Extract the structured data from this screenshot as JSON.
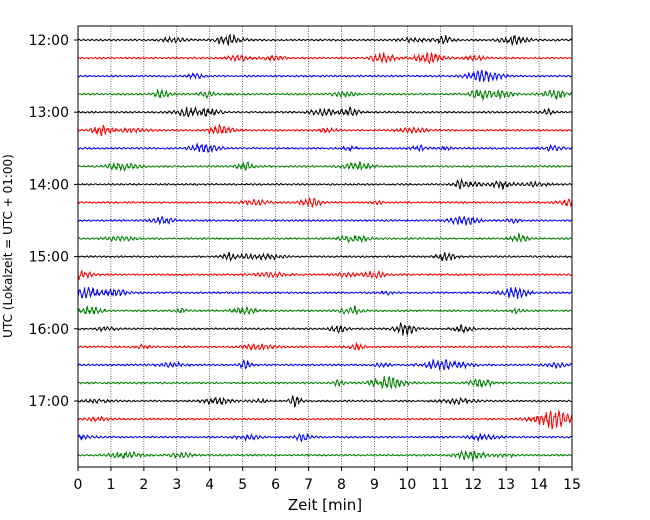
{
  "chart_data": {
    "type": "line",
    "title": "",
    "xlabel": "Zeit  [min]",
    "ylabel": "UTC (Lokalzeit = UTC + 01:00)",
    "xlim": [
      0,
      15
    ],
    "x_ticks": [
      "0",
      "1",
      "2",
      "3",
      "4",
      "5",
      "6",
      "7",
      "8",
      "9",
      "10",
      "11",
      "12",
      "13",
      "14",
      "15"
    ],
    "y_ticks": [
      "12:00",
      "13:00",
      "14:00",
      "15:00",
      "16:00",
      "17:00"
    ],
    "grid": "vertical dotted lines at each minute",
    "row_interval_minutes": 15,
    "color_cycle": [
      "#000000",
      "#ff0000",
      "#0000ff",
      "#008000"
    ],
    "rows": [
      {
        "start": "12:00",
        "color": "#000000"
      },
      {
        "start": "12:15",
        "color": "#ff0000"
      },
      {
        "start": "12:30",
        "color": "#0000ff"
      },
      {
        "start": "12:45",
        "color": "#008000"
      },
      {
        "start": "13:00",
        "color": "#000000"
      },
      {
        "start": "13:15",
        "color": "#ff0000"
      },
      {
        "start": "13:30",
        "color": "#0000ff"
      },
      {
        "start": "13:45",
        "color": "#008000"
      },
      {
        "start": "14:00",
        "color": "#000000"
      },
      {
        "start": "14:15",
        "color": "#ff0000"
      },
      {
        "start": "14:30",
        "color": "#0000ff"
      },
      {
        "start": "14:45",
        "color": "#008000"
      },
      {
        "start": "15:00",
        "color": "#000000"
      },
      {
        "start": "15:15",
        "color": "#ff0000"
      },
      {
        "start": "15:30",
        "color": "#0000ff"
      },
      {
        "start": "15:45",
        "color": "#008000"
      },
      {
        "start": "16:00",
        "color": "#000000"
      },
      {
        "start": "16:15",
        "color": "#ff0000"
      },
      {
        "start": "16:30",
        "color": "#0000ff"
      },
      {
        "start": "16:45",
        "color": "#008000"
      },
      {
        "start": "17:00",
        "color": "#000000"
      },
      {
        "start": "17:15",
        "color": "#ff0000"
      },
      {
        "start": "17:30",
        "color": "#0000ff"
      },
      {
        "start": "17:45",
        "color": "#008000"
      }
    ]
  }
}
